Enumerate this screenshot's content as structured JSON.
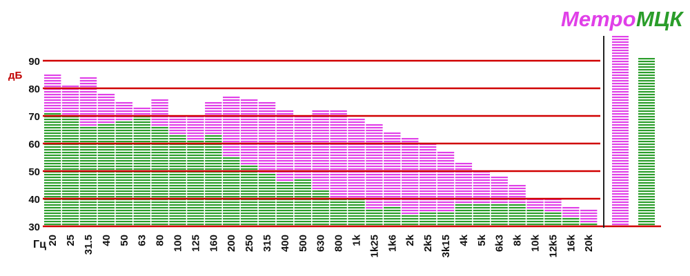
{
  "chart_data": {
    "type": "bar",
    "ylabel": "дБ",
    "xlabel": "Гц",
    "ylim": [
      30,
      100
    ],
    "yticks": [
      30,
      40,
      50,
      60,
      70,
      80,
      90
    ],
    "grid": true,
    "legend_placement": "top-right",
    "categories": [
      "20",
      "25",
      "31.5",
      "40",
      "50",
      "63",
      "80",
      "100",
      "125",
      "160",
      "200",
      "250",
      "315",
      "400",
      "500",
      "630",
      "800",
      "1k",
      "1k25",
      "1k6",
      "2k",
      "2k5",
      "3k15",
      "4k",
      "5k",
      "6k3",
      "8k",
      "10k",
      "12k5",
      "16k",
      "20k"
    ],
    "series": [
      {
        "name": "Метро",
        "color": "#e040e8",
        "values": [
          85,
          81,
          84,
          78,
          75,
          73,
          76,
          70,
          70,
          75,
          77,
          76,
          75,
          72,
          70,
          72,
          72,
          69,
          67,
          64,
          62,
          60,
          57,
          53,
          50,
          48,
          45,
          40,
          40,
          37,
          36
        ]
      },
      {
        "name": "МЦК",
        "color": "#2a9d2a",
        "values": [
          71,
          70,
          66,
          67,
          68,
          70,
          66,
          63,
          61,
          63,
          55,
          52,
          49,
          46,
          47,
          43,
          40,
          40,
          36,
          37,
          34,
          35,
          35,
          38,
          38,
          38,
          38,
          36,
          35,
          33,
          31
        ]
      }
    ],
    "totals": [
      {
        "name": "Метро",
        "color": "#e040e8",
        "value": 99
      },
      {
        "name": "МЦК",
        "color": "#2a9d2a",
        "value": 91
      }
    ],
    "grid_color": "#d00000"
  }
}
